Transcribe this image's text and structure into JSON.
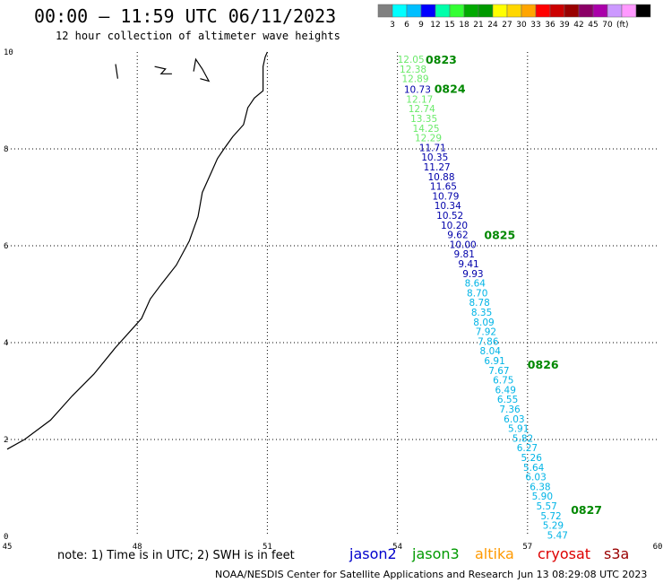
{
  "header": {
    "title": "00:00 – 11:59 UTC 06/11/2023",
    "subtitle": "12 hour collection of altimeter wave heights"
  },
  "colorbar": {
    "unit": "(ft)",
    "colors": [
      "#808080",
      "#00ffff",
      "#00bfff",
      "#0000ff",
      "#00ffaa",
      "#33ff33",
      "#00aa00",
      "#009900",
      "#ffff00",
      "#ffd700",
      "#ffa500",
      "#ff0000",
      "#cc0000",
      "#990000",
      "#8b0066",
      "#aa00aa",
      "#cc99ff",
      "#ff99ff",
      "#000000"
    ],
    "labels": [
      "3",
      "6",
      "9",
      "12",
      "15",
      "18",
      "21",
      "24",
      "27",
      "30",
      "33",
      "36",
      "39",
      "42",
      "45",
      "70"
    ]
  },
  "chart_data": {
    "type": "scatter",
    "xlim": [
      45,
      60
    ],
    "ylim": [
      0,
      10
    ],
    "x_ticks": [
      "45",
      "48",
      "51",
      "54",
      "57",
      "60"
    ],
    "y_ticks": [
      "0",
      "2",
      "4",
      "6",
      "8",
      "10"
    ],
    "grid": true,
    "color_ramp": {
      "ramp": [
        "#6bea6b",
        "#0000aa",
        "#00b4e6"
      ]
    },
    "points": [
      {
        "x": 54.0,
        "y": 9.85,
        "label": "12.05",
        "c": 0
      },
      {
        "x": 54.05,
        "y": 9.65,
        "label": "12.38",
        "c": 0
      },
      {
        "x": 54.1,
        "y": 9.45,
        "label": "12.89",
        "c": 0
      },
      {
        "x": 54.15,
        "y": 9.23,
        "label": "10.73",
        "c": 1
      },
      {
        "x": 54.2,
        "y": 9.03,
        "label": "12.17",
        "c": 0
      },
      {
        "x": 54.25,
        "y": 8.83,
        "label": "12.74",
        "c": 0
      },
      {
        "x": 54.3,
        "y": 8.63,
        "label": "13.35",
        "c": 0
      },
      {
        "x": 54.35,
        "y": 8.43,
        "label": "14.25",
        "c": 0
      },
      {
        "x": 54.4,
        "y": 8.23,
        "label": "12.29",
        "c": 0
      },
      {
        "x": 54.5,
        "y": 8.03,
        "label": "11.71",
        "c": 1
      },
      {
        "x": 54.55,
        "y": 7.83,
        "label": "10.35",
        "c": 1
      },
      {
        "x": 54.6,
        "y": 7.63,
        "label": "11.27",
        "c": 1
      },
      {
        "x": 54.7,
        "y": 7.43,
        "label": "10.88",
        "c": 1
      },
      {
        "x": 54.75,
        "y": 7.23,
        "label": "11.65",
        "c": 1
      },
      {
        "x": 54.8,
        "y": 7.03,
        "label": "10.79",
        "c": 1
      },
      {
        "x": 54.85,
        "y": 6.83,
        "label": "10.34",
        "c": 1
      },
      {
        "x": 54.9,
        "y": 6.63,
        "label": "10.52",
        "c": 1
      },
      {
        "x": 55.0,
        "y": 6.43,
        "label": "10.20",
        "c": 1
      },
      {
        "x": 55.15,
        "y": 6.23,
        "label": "9.62",
        "c": 1
      },
      {
        "x": 55.2,
        "y": 6.03,
        "label": "10.00",
        "c": 1
      },
      {
        "x": 55.3,
        "y": 5.83,
        "label": "9.81",
        "c": 1
      },
      {
        "x": 55.4,
        "y": 5.63,
        "label": "9.41",
        "c": 1
      },
      {
        "x": 55.5,
        "y": 5.43,
        "label": "9.93",
        "c": 1
      },
      {
        "x": 55.55,
        "y": 5.23,
        "label": "8.64",
        "c": 2
      },
      {
        "x": 55.6,
        "y": 5.03,
        "label": "8.70",
        "c": 2
      },
      {
        "x": 55.65,
        "y": 4.83,
        "label": "8.78",
        "c": 2
      },
      {
        "x": 55.7,
        "y": 4.63,
        "label": "8.35",
        "c": 2
      },
      {
        "x": 55.75,
        "y": 4.43,
        "label": "8.09",
        "c": 2
      },
      {
        "x": 55.8,
        "y": 4.23,
        "label": "7.92",
        "c": 2
      },
      {
        "x": 55.85,
        "y": 4.03,
        "label": "7.86",
        "c": 2
      },
      {
        "x": 55.9,
        "y": 3.83,
        "label": "8.04",
        "c": 2
      },
      {
        "x": 56.0,
        "y": 3.63,
        "label": "6.91",
        "c": 2
      },
      {
        "x": 56.1,
        "y": 3.43,
        "label": "7.67",
        "c": 2
      },
      {
        "x": 56.2,
        "y": 3.23,
        "label": "6.75",
        "c": 2
      },
      {
        "x": 56.25,
        "y": 3.03,
        "label": "6.49",
        "c": 2
      },
      {
        "x": 56.3,
        "y": 2.83,
        "label": "6.55",
        "c": 2
      },
      {
        "x": 56.35,
        "y": 2.63,
        "label": "7.36",
        "c": 2
      },
      {
        "x": 56.45,
        "y": 2.43,
        "label": "6.03",
        "c": 2
      },
      {
        "x": 56.55,
        "y": 2.23,
        "label": "5.91",
        "c": 2
      },
      {
        "x": 56.65,
        "y": 2.03,
        "label": "5.82",
        "c": 2
      },
      {
        "x": 56.75,
        "y": 1.83,
        "label": "6.27",
        "c": 2
      },
      {
        "x": 56.85,
        "y": 1.63,
        "label": "5.26",
        "c": 2
      },
      {
        "x": 56.9,
        "y": 1.43,
        "label": "5.64",
        "c": 2
      },
      {
        "x": 56.95,
        "y": 1.23,
        "label": "6.03",
        "c": 2
      },
      {
        "x": 57.05,
        "y": 1.03,
        "label": "6.38",
        "c": 2
      },
      {
        "x": 57.1,
        "y": 0.83,
        "label": "5.90",
        "c": 2
      },
      {
        "x": 57.2,
        "y": 0.63,
        "label": "5.57",
        "c": 2
      },
      {
        "x": 57.3,
        "y": 0.43,
        "label": "5.72",
        "c": 2
      },
      {
        "x": 57.35,
        "y": 0.23,
        "label": "5.29",
        "c": 2
      },
      {
        "x": 57.45,
        "y": 0.03,
        "label": "5.47",
        "c": 2
      }
    ],
    "time_labels": [
      {
        "x": 54.65,
        "y": 9.85,
        "label": "0823"
      },
      {
        "x": 54.85,
        "y": 9.25,
        "label": "0824"
      },
      {
        "x": 56.0,
        "y": 6.23,
        "label": "0825"
      },
      {
        "x": 57.0,
        "y": 3.56,
        "label": "0826"
      },
      {
        "x": 58.0,
        "y": 0.56,
        "label": "0827"
      }
    ],
    "coastline": [
      [
        45.0,
        1.8
      ],
      [
        45.4,
        2.0
      ],
      [
        46.0,
        2.4
      ],
      [
        46.5,
        2.9
      ],
      [
        47.0,
        3.35
      ],
      [
        47.5,
        3.9
      ],
      [
        47.9,
        4.3
      ],
      [
        48.1,
        4.5
      ],
      [
        48.3,
        4.9
      ],
      [
        48.55,
        5.2
      ],
      [
        48.9,
        5.6
      ],
      [
        49.2,
        6.1
      ],
      [
        49.4,
        6.6
      ],
      [
        49.5,
        7.1
      ],
      [
        49.7,
        7.5
      ],
      [
        49.85,
        7.8
      ],
      [
        50.0,
        8.0
      ],
      [
        50.2,
        8.25
      ],
      [
        50.45,
        8.5
      ],
      [
        50.55,
        8.85
      ],
      [
        50.7,
        9.05
      ],
      [
        50.9,
        9.2
      ],
      [
        50.9,
        9.45
      ],
      [
        50.9,
        9.7
      ],
      [
        50.95,
        9.9
      ],
      [
        51.0,
        10.0
      ]
    ],
    "islands": [
      [
        [
          47.55,
          9.45
        ],
        [
          47.5,
          9.75
        ]
      ],
      [
        [
          48.4,
          9.7
        ],
        [
          48.65,
          9.65
        ],
        [
          48.55,
          9.55
        ],
        [
          48.8,
          9.55
        ]
      ],
      [
        [
          49.3,
          9.6
        ],
        [
          49.35,
          9.85
        ],
        [
          49.5,
          9.65
        ],
        [
          49.65,
          9.4
        ],
        [
          49.45,
          9.45
        ]
      ]
    ]
  },
  "note": "note: 1) Time is in UTC; 2) SWH is in feet",
  "missions": [
    {
      "name": "jason2",
      "color": "#0000cc"
    },
    {
      "name": "jason3",
      "color": "#009900"
    },
    {
      "name": "altika",
      "color": "#ff9900"
    },
    {
      "name": "cryosat",
      "color": "#dd0000"
    },
    {
      "name": "s3a",
      "color": "#990000"
    }
  ],
  "footer": {
    "source": "NOAA/NESDIS Center for Satellite Applications and Research",
    "timestamp": "Jun 13 08:29:08 UTC 2023"
  }
}
